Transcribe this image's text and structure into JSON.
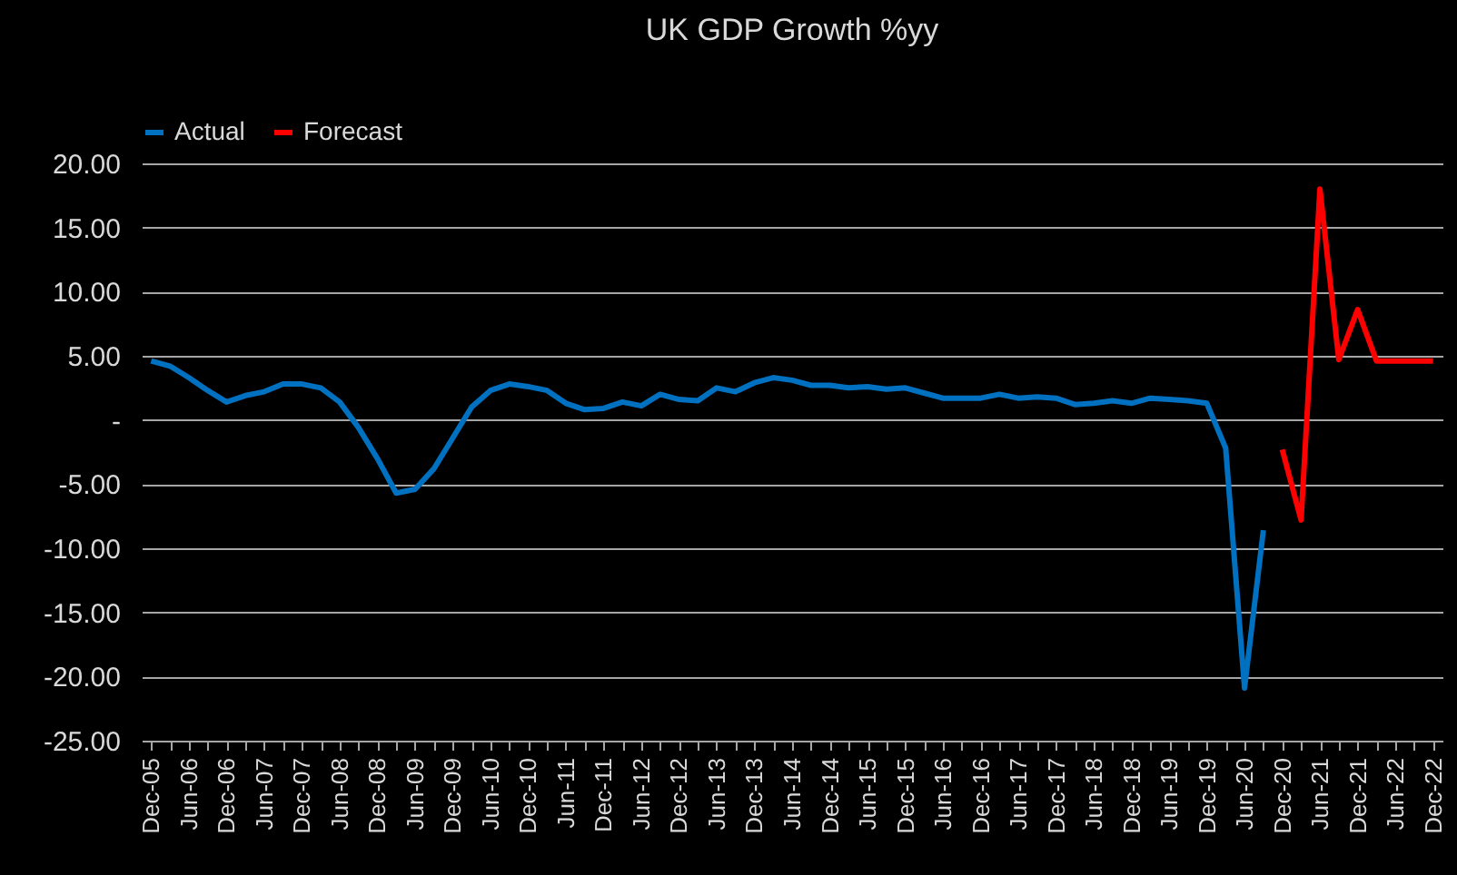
{
  "chart_data": {
    "type": "line",
    "title": "UK GDP Growth %yy",
    "categories": [
      "Dec-05",
      null,
      "Jun-06",
      null,
      "Dec-06",
      null,
      "Jun-07",
      null,
      "Dec-07",
      null,
      "Jun-08",
      null,
      "Dec-08",
      null,
      "Jun-09",
      null,
      "Dec-09",
      null,
      "Jun-10",
      null,
      "Dec-10",
      null,
      "Jun-11",
      null,
      "Dec-11",
      null,
      "Jun-12",
      null,
      "Dec-12",
      null,
      "Jun-13",
      null,
      "Dec-13",
      null,
      "Jun-14",
      null,
      "Dec-14",
      null,
      "Jun-15",
      null,
      "Dec-15",
      null,
      "Jun-16",
      null,
      "Dec-16",
      null,
      "Jun-17",
      null,
      "Dec-17",
      null,
      "Jun-18",
      null,
      "Dec-18",
      null,
      "Jun-19",
      null,
      "Dec-19",
      null,
      "Jun-20",
      null,
      "Dec-20",
      null,
      "Jun-21",
      null,
      "Dec-21",
      null,
      "Jun-22",
      null,
      "Dec-22"
    ],
    "series": [
      {
        "name": "Actual",
        "color": "#0070c0",
        "values": [
          4.6,
          4.2,
          3.3,
          2.3,
          1.4,
          1.9,
          2.2,
          2.8,
          2.8,
          2.5,
          1.4,
          -0.6,
          -3.0,
          -5.7,
          -5.4,
          -3.8,
          -1.4,
          1.0,
          2.3,
          2.8,
          2.6,
          2.3,
          1.3,
          0.8,
          0.9,
          1.4,
          1.1,
          2.0,
          1.6,
          1.5,
          2.5,
          2.2,
          2.9,
          3.3,
          3.1,
          2.7,
          2.7,
          2.5,
          2.6,
          2.4,
          2.5,
          2.1,
          1.7,
          1.7,
          1.7,
          2.0,
          1.7,
          1.8,
          1.7,
          1.2,
          1.3,
          1.5,
          1.3,
          1.7,
          1.6,
          1.5,
          1.3,
          -2.2,
          -20.9,
          -8.6,
          null,
          null,
          null,
          null,
          null,
          null,
          null,
          null,
          null
        ]
      },
      {
        "name": "Forecast",
        "color": "#ff0000",
        "values": [
          null,
          null,
          null,
          null,
          null,
          null,
          null,
          null,
          null,
          null,
          null,
          null,
          null,
          null,
          null,
          null,
          null,
          null,
          null,
          null,
          null,
          null,
          null,
          null,
          null,
          null,
          null,
          null,
          null,
          null,
          null,
          null,
          null,
          null,
          null,
          null,
          null,
          null,
          null,
          null,
          null,
          null,
          null,
          null,
          null,
          null,
          null,
          null,
          null,
          null,
          null,
          null,
          null,
          null,
          null,
          null,
          null,
          null,
          null,
          null,
          -2.3,
          -7.8,
          18.0,
          4.7,
          8.6,
          4.6,
          4.6,
          4.6,
          4.6
        ]
      }
    ],
    "ylim": [
      -25,
      20
    ],
    "yticks": [
      {
        "value": -25,
        "label": "-25.00"
      },
      {
        "value": -20,
        "label": "-20.00"
      },
      {
        "value": -15,
        "label": "-15.00"
      },
      {
        "value": -10,
        "label": "-10.00"
      },
      {
        "value": -5,
        "label": "-5.00"
      },
      {
        "value": 0,
        "label": "-"
      },
      {
        "value": 5,
        "label": "5.00"
      },
      {
        "value": 10,
        "label": "10.00"
      },
      {
        "value": 15,
        "label": "15.00"
      },
      {
        "value": 20,
        "label": "20.00"
      }
    ],
    "grid": "y",
    "legend": "top",
    "marker": "none",
    "line_style": "solid"
  }
}
